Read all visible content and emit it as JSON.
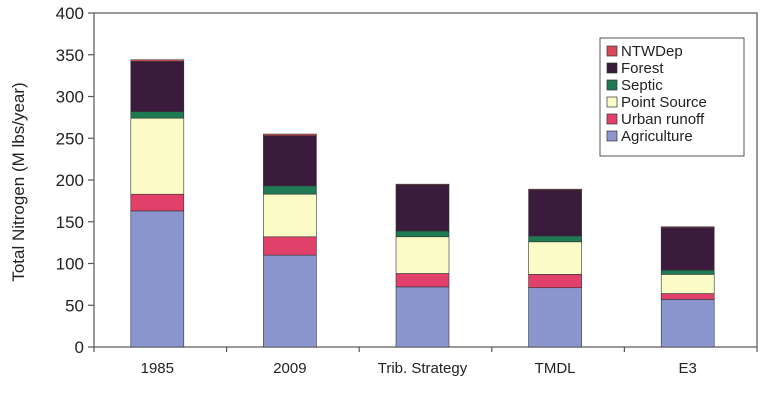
{
  "chart_data": {
    "type": "bar",
    "stacked": true,
    "title": "",
    "xlabel": "",
    "ylabel": "Total Nitrogen (M lbs/year)",
    "ylim": [
      0,
      400
    ],
    "yticks": [
      0,
      50,
      100,
      150,
      200,
      250,
      300,
      350,
      400
    ],
    "grid": false,
    "legend_position": "top-right",
    "categories": [
      "1985",
      "2009",
      "Trib. Strategy",
      "TMDL",
      "E3"
    ],
    "series": [
      {
        "name": "Agriculture",
        "color": "#8b96cf",
        "values": [
          163,
          110,
          72,
          71,
          57
        ]
      },
      {
        "name": "Urban runoff",
        "color": "#e0406a",
        "values": [
          20,
          22,
          16,
          16,
          7
        ]
      },
      {
        "name": "Point Source",
        "color": "#fbfbc8",
        "values": [
          91,
          51,
          44,
          39,
          23
        ]
      },
      {
        "name": "Septic",
        "color": "#1e7a52",
        "values": [
          8,
          10,
          7,
          7,
          5
        ]
      },
      {
        "name": "Forest",
        "color": "#3a1b3c",
        "values": [
          60,
          60,
          55,
          55,
          51
        ]
      },
      {
        "name": "NTWDep",
        "color": "#d94a58",
        "values": [
          2,
          2,
          1,
          1,
          1
        ]
      }
    ],
    "legend_order": [
      "NTWDep",
      "Forest",
      "Septic",
      "Point Source",
      "Urban runoff",
      "Agriculture"
    ]
  }
}
